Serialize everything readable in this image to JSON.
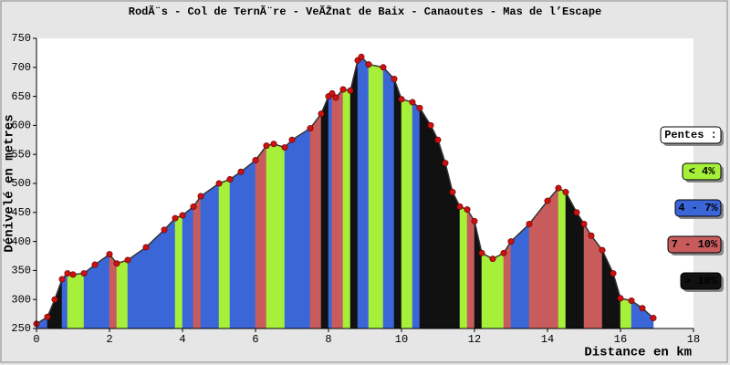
{
  "chart_data": {
    "type": "profile",
    "title": "RodÃ¨s - Col de TernÃ¨re - VeÃŽnat de Baix - Canaoutes - Mas de l’Escape",
    "xlabel": "Distance en km",
    "ylabel": "Dénivelé en metres",
    "xlim": [
      0,
      18
    ],
    "xticks": [
      0,
      2,
      4,
      6,
      8,
      10,
      12,
      14,
      16,
      18
    ],
    "ylim": [
      250,
      750
    ],
    "yticks": [
      250,
      300,
      350,
      400,
      450,
      500,
      550,
      600,
      650,
      700,
      750
    ],
    "series": [
      {
        "color": "#cc1111",
        "x": [
          0,
          0.3,
          0.5,
          0.7,
          0.85,
          1.0,
          1.3,
          1.6,
          2.0,
          2.2,
          2.5,
          3.0,
          3.5,
          3.8,
          4.0,
          4.3,
          4.5,
          5.0,
          5.3,
          5.6,
          6.0,
          6.3,
          6.5,
          6.8,
          7.0,
          7.5,
          7.8,
          8.0,
          8.1,
          8.2,
          8.4,
          8.6,
          8.8,
          8.9,
          9.1,
          9.5,
          9.8,
          10.0,
          10.3,
          10.5,
          10.8,
          11.0,
          11.2,
          11.4,
          11.6,
          11.8,
          12.0,
          12.2,
          12.5,
          12.8,
          13.0,
          13.5,
          14.0,
          14.3,
          14.5,
          14.8,
          15.0,
          15.2,
          15.5,
          15.8,
          16.0,
          16.3,
          16.6,
          16.9
        ],
        "values": [
          258,
          270,
          300,
          335,
          345,
          343,
          345,
          360,
          378,
          362,
          368,
          390,
          420,
          440,
          445,
          460,
          478,
          500,
          507,
          520,
          540,
          565,
          568,
          562,
          575,
          595,
          620,
          650,
          655,
          648,
          662,
          660,
          712,
          718,
          705,
          700,
          680,
          645,
          640,
          630,
          600,
          575,
          535,
          485,
          460,
          455,
          435,
          380,
          370,
          380,
          400,
          430,
          470,
          492,
          485,
          450,
          430,
          410,
          385,
          345,
          302,
          298,
          285,
          268
        ],
        "segment_colors": [
          "#3b66d8",
          "#111111",
          "#111111",
          "#3b66d8",
          "#a6f03a",
          "#a6f03a",
          "#3b66d8",
          "#3b66d8",
          "#c85c5c",
          "#a6f03a",
          "#3b66d8",
          "#3b66d8",
          "#3b66d8",
          "#a6f03a",
          "#3b66d8",
          "#c85c5c",
          "#3b66d8",
          "#a6f03a",
          "#3b66d8",
          "#3b66d8",
          "#c85c5c",
          "#a6f03a",
          "#a6f03a",
          "#3b66d8",
          "#3b66d8",
          "#c85c5c",
          "#111111",
          "#3b66d8",
          "#c85c5c",
          "#c85c5c",
          "#a6f03a",
          "#111111",
          "#3b66d8",
          "#3b66d8",
          "#a6f03a",
          "#3b66d8",
          "#111111",
          "#a6f03a",
          "#3b66d8",
          "#111111",
          "#111111",
          "#111111",
          "#111111",
          "#111111",
          "#a6f03a",
          "#c85c5c",
          "#111111",
          "#a6f03a",
          "#a6f03a",
          "#c85c5c",
          "#3b66d8",
          "#c85c5c",
          "#c85c5c",
          "#a6f03a",
          "#111111",
          "#111111",
          "#c85c5c",
          "#c85c5c",
          "#111111",
          "#111111",
          "#a6f03a",
          "#3b66d8",
          "#3b66d8"
        ]
      }
    ],
    "legend": {
      "title": "Pentes :",
      "position": "right",
      "items": [
        {
          "label": "< 4%",
          "color": "#a6f03a"
        },
        {
          "label": "4 - 7%",
          "color": "#3b66d8"
        },
        {
          "label": "7 - 10%",
          "color": "#c85c5c"
        },
        {
          "label": "> 10%",
          "color": "#111111"
        }
      ]
    }
  }
}
